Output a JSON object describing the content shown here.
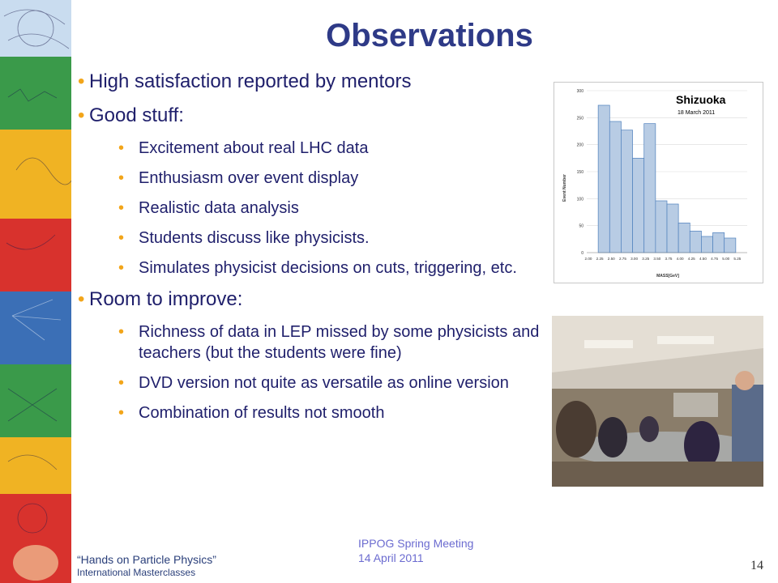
{
  "slide": {
    "title": "Observations",
    "bullets": [
      {
        "text": "High satisfaction reported by mentors",
        "children": []
      },
      {
        "text": "Good stuff:",
        "children": [
          "Excitement about real LHC data",
          "Enthusiasm over event display",
          "Realistic data analysis",
          "Students discuss like physicists.",
          "Simulates physicist decisions on cuts, triggering, etc."
        ]
      },
      {
        "text": "Room to improve:",
        "children": [
          "Richness of data in LEP missed by some physicists and teachers (but the students were fine)",
          "DVD version not quite as versatile as online version",
          "Combination of results not smooth"
        ]
      }
    ],
    "footer": {
      "meeting_line1": "IPPOG Spring Meeting",
      "meeting_line2": "14 April 2011",
      "page_number": "14"
    },
    "logo": {
      "line1": "“Hands on Particle Physics”",
      "line2": "International Masterclasses"
    },
    "colors": {
      "title": "#2e3a87",
      "text": "#1f1f6b",
      "bullet": "#f2a51a",
      "bar_fill": "#b8cce4",
      "bar_stroke": "#4f81bd"
    }
  },
  "chart_data": {
    "type": "bar",
    "title": "Shizuoka",
    "subtitle": "18 March 2011",
    "xlabel": "MASS[GeV]",
    "ylabel": "Event Number",
    "ylim": [
      0,
      300
    ],
    "yticks": [
      0,
      50,
      100,
      150,
      200,
      250,
      300
    ],
    "categories": [
      "2.00",
      "2.25",
      "2.50",
      "2.75",
      "3.00",
      "3.25",
      "3.50",
      "3.75",
      "4.00",
      "4.25",
      "4.50",
      "4.75",
      "5.00",
      "5.25"
    ],
    "values": [
      0,
      273,
      243,
      227,
      175,
      239,
      96,
      90,
      55,
      40,
      30,
      37,
      27,
      0
    ],
    "grid": true
  }
}
